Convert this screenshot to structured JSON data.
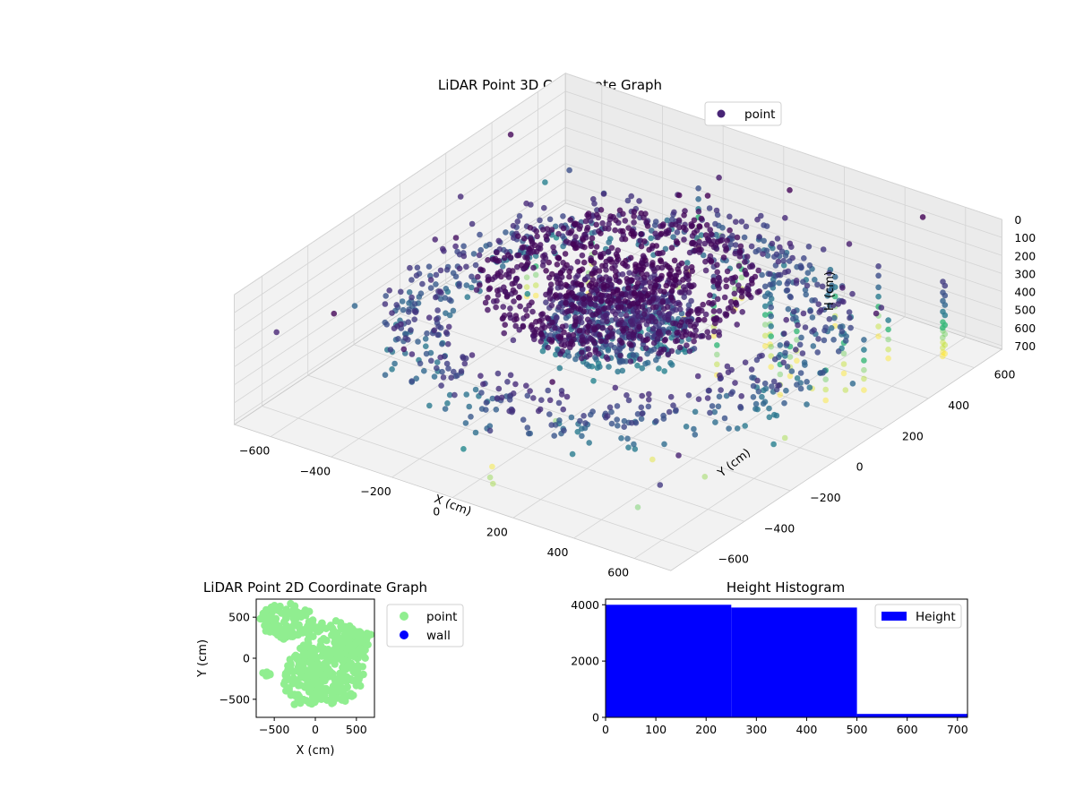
{
  "chart_data": [
    {
      "type": "scatter3d",
      "title": "LiDAR Point 3D Coordinate Graph",
      "xlabel": "X (cm)",
      "ylabel": "Y (cm)",
      "zlabel": "H (cm)",
      "xlim": [
        -720,
        720
      ],
      "ylim": [
        -720,
        720
      ],
      "zlim": [
        0,
        720
      ],
      "z_inverted": true,
      "xticks": [
        "−600",
        "−400",
        "−200",
        "0",
        "200",
        "400",
        "600"
      ],
      "yticks": [
        "−600",
        "−400",
        "−200",
        "0",
        "200",
        "400",
        "600"
      ],
      "zticks": [
        "0",
        "100",
        "200",
        "300",
        "400",
        "500",
        "600",
        "700"
      ],
      "grid": true,
      "legend": {
        "position": "upper-right",
        "entries": [
          {
            "label": "point",
            "color": "#482576"
          }
        ]
      },
      "colormap": "viridis",
      "structure": {
        "center_column": {
          "radius_cm": [
            0,
            200
          ],
          "height_cm": [
            40,
            500
          ]
        },
        "inner_ring": {
          "radius_cm": [
            250,
            380
          ],
          "height_cm": [
            100,
            200
          ]
        },
        "outer_ring": {
          "radius_cm": [
            450,
            620
          ],
          "height_cm": [
            250,
            480
          ]
        },
        "upper_columns": {
          "height_cm": [
            400,
            680
          ]
        }
      }
    },
    {
      "type": "scatter",
      "title": "LiDAR Point 2D Coordinate Graph",
      "xlabel": "X (cm)",
      "ylabel": "Y (cm)",
      "xlim": [
        -720,
        720
      ],
      "ylim": [
        -720,
        720
      ],
      "xticks": [
        "−500",
        "0",
        "500"
      ],
      "yticks": [
        "−500",
        "0",
        "500"
      ],
      "legend": {
        "position": "outside-right",
        "entries": [
          {
            "label": "point",
            "color": "#90ee90"
          },
          {
            "label": "wall",
            "color": "#0000ff"
          }
        ]
      }
    },
    {
      "type": "histogram",
      "title": "Height Histogram",
      "xlim": [
        0,
        720
      ],
      "ylim": [
        0,
        4200
      ],
      "xticks": [
        "0",
        "100",
        "200",
        "300",
        "400",
        "500",
        "600",
        "700"
      ],
      "yticks": [
        "0",
        "2000",
        "4000"
      ],
      "bins": [
        {
          "from": 0,
          "to": 250,
          "count": 4000
        },
        {
          "from": 250,
          "to": 500,
          "count": 3900
        },
        {
          "from": 500,
          "to": 720,
          "count": 120
        }
      ],
      "color": "#0000ff",
      "legend": {
        "position": "upper-right",
        "entries": [
          {
            "label": "Height",
            "color": "#0000ff"
          }
        ]
      }
    }
  ]
}
